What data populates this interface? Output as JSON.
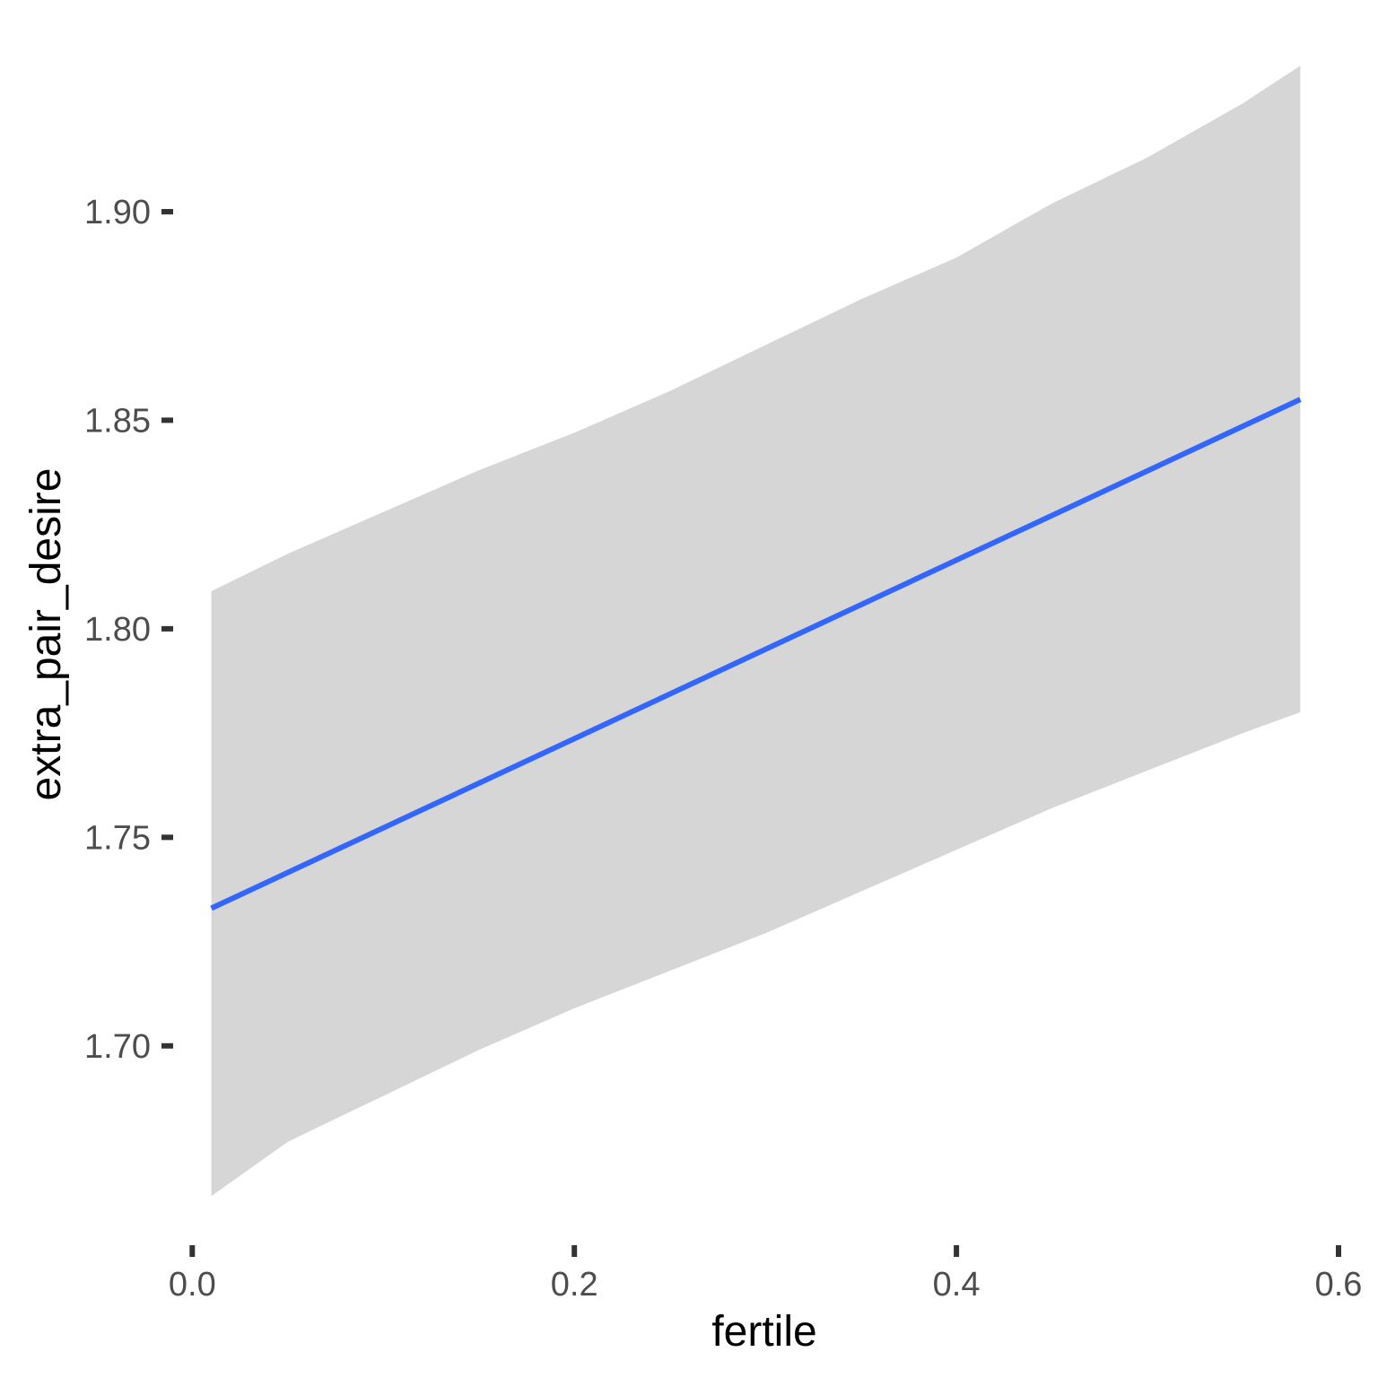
{
  "chart_data": {
    "type": "line",
    "title": "",
    "xlabel": "fertile",
    "ylabel": "extra_pair_desire",
    "xlim": [
      -0.01,
      0.6
    ],
    "ylim": [
      1.655,
      1.94
    ],
    "xticks": [
      0.0,
      0.2,
      0.4,
      0.6
    ],
    "xtick_labels": [
      "0.0",
      "0.2",
      "0.4",
      "0.6"
    ],
    "yticks": [
      1.7,
      1.75,
      1.8,
      1.85,
      1.9
    ],
    "ytick_labels": [
      "1.70",
      "1.75",
      "1.80",
      "1.85",
      "1.90"
    ],
    "grid": false,
    "legend": "none",
    "series": [
      {
        "x": [
          0.01,
          0.58
        ],
        "y": [
          1.733,
          1.855
        ],
        "ci_x": [
          0.01,
          0.05,
          0.1,
          0.15,
          0.2,
          0.25,
          0.3,
          0.35,
          0.4,
          0.45,
          0.5,
          0.55,
          0.58
        ],
        "ci_lower": [
          1.664,
          1.677,
          1.688,
          1.699,
          1.709,
          1.718,
          1.727,
          1.737,
          1.747,
          1.757,
          1.766,
          1.775,
          1.78
        ],
        "ci_upper": [
          1.809,
          1.818,
          1.828,
          1.838,
          1.847,
          1.857,
          1.868,
          1.879,
          1.889,
          1.902,
          1.913,
          1.926,
          1.935
        ]
      }
    ],
    "colors": {
      "line": "#3366FF",
      "band": "#D6D6D6",
      "tick": "#333333"
    }
  }
}
